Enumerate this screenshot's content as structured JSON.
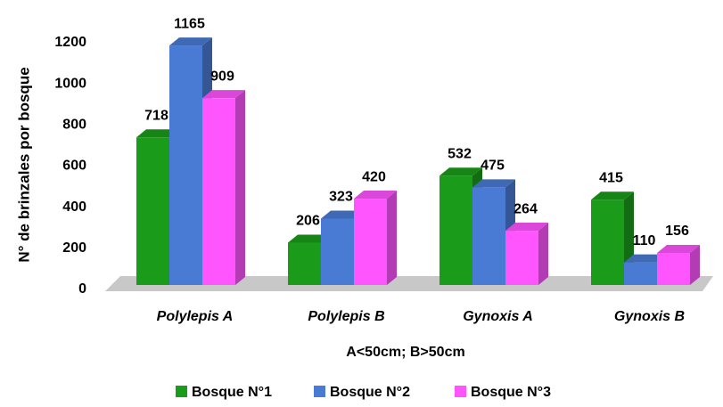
{
  "chart_data": {
    "type": "bar3d",
    "ylabel": "N° de brinzales por bosque",
    "xlabel": "A<50cm;  B>50cm",
    "categories": [
      "Polylepis A",
      "Polylepis B",
      "Gynoxis A",
      "Gynoxis B"
    ],
    "series": [
      {
        "name": "Bosque N°1",
        "color": "#1a9c1a",
        "values": [
          718,
          206,
          532,
          415
        ]
      },
      {
        "name": "Bosque N°2",
        "color": "#4a7bd4",
        "values": [
          1165,
          323,
          475,
          110
        ]
      },
      {
        "name": "Bosque N°3",
        "color": "#ff55ff",
        "values": [
          909,
          420,
          264,
          156
        ]
      }
    ],
    "ylim": [
      0,
      1200
    ],
    "yticks": [
      0,
      200,
      400,
      600,
      800,
      1000,
      1200
    ],
    "legend": "bottom"
  }
}
